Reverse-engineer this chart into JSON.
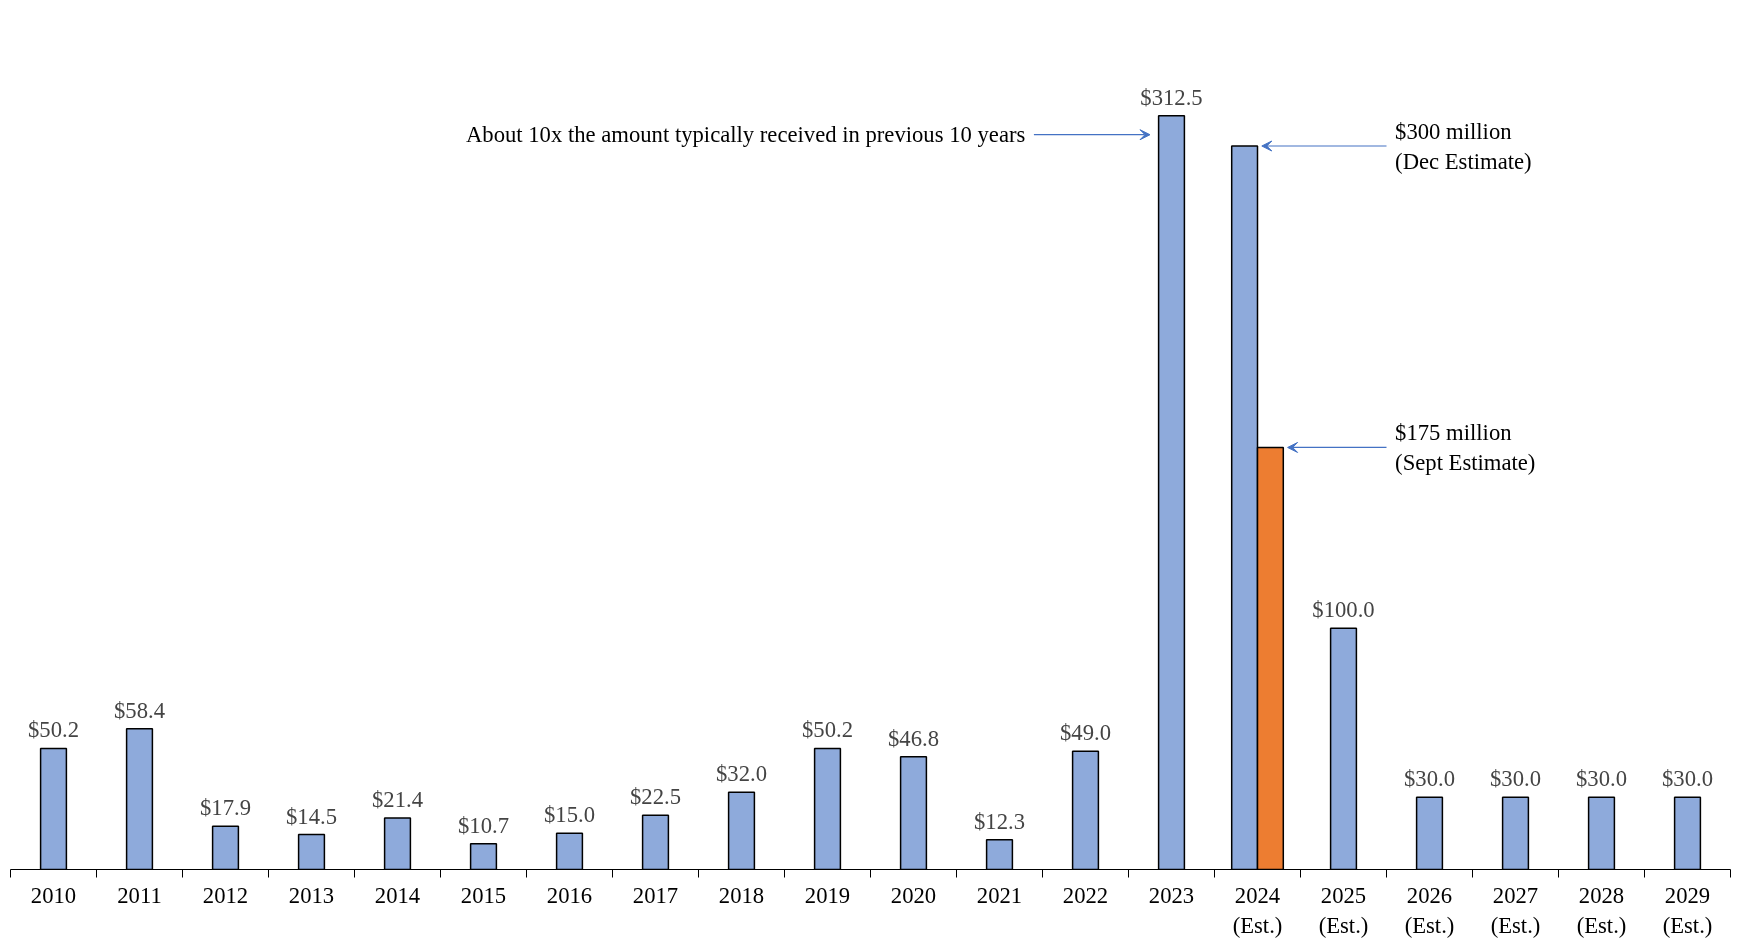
{
  "chart_data": {
    "type": "bar",
    "categories": [
      "2010",
      "2011",
      "2012",
      "2013",
      "2014",
      "2015",
      "2016",
      "2017",
      "2018",
      "2019",
      "2020",
      "2021",
      "2022",
      "2023",
      "2024\n(Est.)",
      "2025\n(Est.)",
      "2026\n(Est.)",
      "2027\n(Est.)",
      "2028\n(Est.)",
      "2029\n(Est.)"
    ],
    "series": [
      {
        "color": "#8eaadb",
        "values": [
          50.2,
          58.4,
          17.9,
          14.5,
          21.4,
          10.7,
          15.0,
          22.5,
          32.0,
          50.2,
          46.8,
          12.3,
          49.0,
          312.5,
          300,
          100.0,
          30.0,
          30.0,
          30.0,
          30.0
        ],
        "value_labels": [
          "$50.2",
          "$58.4",
          "$17.9",
          "$14.5",
          "$21.4",
          "$10.7",
          "$15.0",
          "$22.5",
          "$32.0",
          "$50.2",
          "$46.8",
          "$12.3",
          "$49.0",
          "$312.5",
          null,
          "$100.0",
          "$30.0",
          "$30.0",
          "$30.0",
          "$30.0"
        ]
      },
      {
        "color": "#ed7d31",
        "values": [
          null,
          null,
          null,
          null,
          null,
          null,
          null,
          null,
          null,
          null,
          null,
          null,
          null,
          null,
          175,
          null,
          null,
          null,
          null,
          null
        ]
      }
    ],
    "annotations": [
      "About 10x the amount typically received in previous 10 years",
      "$300 million\n(Dec Estimate)",
      "$175 million\n(Sept Estimate)"
    ],
    "grid": false
  }
}
